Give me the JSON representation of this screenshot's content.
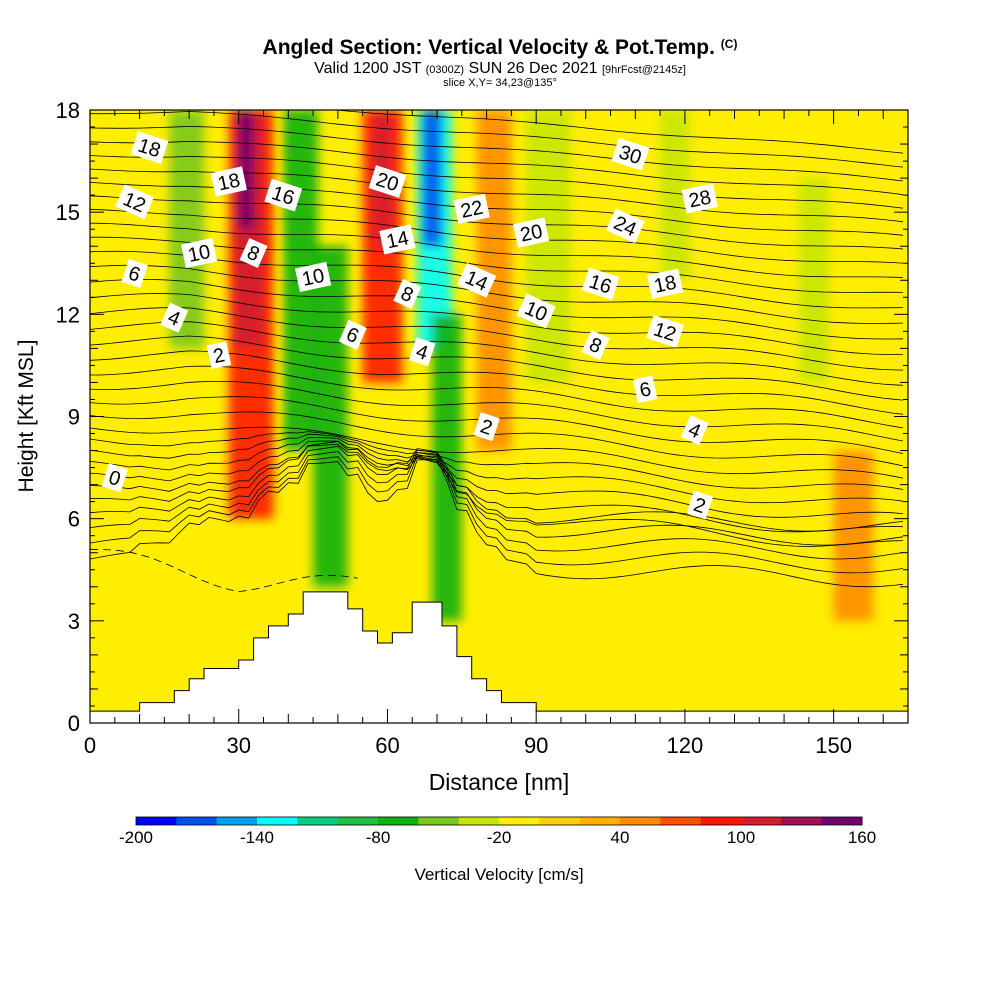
{
  "header": {
    "title": "Angled Section: Vertical Velocity & Pot.Temp.",
    "title_mark": "(C)",
    "subtitle_valid": "Valid 1200 JST",
    "subtitle_utc": "(0300Z)",
    "subtitle_date": "SUN 26 Dec 2021",
    "subtitle_fcst": "[9hrFcst@2145z]",
    "slice": "slice X,Y= 34,23@135°"
  },
  "chart_data": {
    "type": "heatmap",
    "xlabel": "Distance [nm]",
    "ylabel": "Height [Kft MSL]",
    "xlim": [
      0,
      165
    ],
    "ylim": [
      0,
      18
    ],
    "x_ticks": [
      0,
      30,
      60,
      90,
      120,
      150
    ],
    "y_ticks": [
      0,
      3,
      6,
      9,
      12,
      15,
      18
    ],
    "colorbar": {
      "label": "Vertical Velocity [cm/s]",
      "min": -200,
      "max": 160,
      "step": 20,
      "tick_labels": [
        "-200",
        "-140",
        "-80",
        "-20",
        "40",
        "100",
        "160"
      ],
      "colors": [
        "#0000ff",
        "#0050f0",
        "#00a0f0",
        "#00ffff",
        "#00d080",
        "#20c040",
        "#10b010",
        "#7ac81e",
        "#c8e600",
        "#ffee00",
        "#ffd000",
        "#ffb000",
        "#ff8c00",
        "#ff5000",
        "#ff1400",
        "#d21e2d",
        "#a01050",
        "#700070"
      ]
    },
    "terrain": [
      [
        0,
        0.35
      ],
      [
        10,
        0.35
      ],
      [
        10,
        0.6
      ],
      [
        17,
        0.6
      ],
      [
        17,
        0.95
      ],
      [
        20,
        0.95
      ],
      [
        20,
        1.3
      ],
      [
        23,
        1.3
      ],
      [
        23,
        1.6
      ],
      [
        30,
        1.6
      ],
      [
        30,
        1.85
      ],
      [
        33,
        1.85
      ],
      [
        33,
        2.5
      ],
      [
        36,
        2.5
      ],
      [
        36,
        2.85
      ],
      [
        40,
        2.85
      ],
      [
        40,
        3.2
      ],
      [
        43,
        3.2
      ],
      [
        43,
        3.85
      ],
      [
        52,
        3.85
      ],
      [
        52,
        3.35
      ],
      [
        55,
        3.35
      ],
      [
        55,
        2.7
      ],
      [
        58,
        2.7
      ],
      [
        58,
        2.35
      ],
      [
        61,
        2.35
      ],
      [
        61,
        2.65
      ],
      [
        65,
        2.65
      ],
      [
        65,
        3.55
      ],
      [
        71,
        3.55
      ],
      [
        71,
        2.85
      ],
      [
        74,
        2.85
      ],
      [
        74,
        1.95
      ],
      [
        77,
        1.95
      ],
      [
        77,
        1.3
      ],
      [
        80,
        1.3
      ],
      [
        80,
        0.95
      ],
      [
        83,
        0.95
      ],
      [
        83,
        0.6
      ],
      [
        90,
        0.6
      ],
      [
        90,
        0.35
      ],
      [
        165,
        0.35
      ]
    ],
    "velocity_bands": [
      {
        "x0": 28,
        "x1": 37,
        "y0": 6,
        "y1": 18,
        "value": 90
      },
      {
        "x0": 29,
        "x1": 35,
        "y0": 11,
        "y1": 18,
        "value": 110
      },
      {
        "x0": 30,
        "x1": 33,
        "y0": 14.5,
        "y1": 18,
        "value": 150
      },
      {
        "x0": 16,
        "x1": 23,
        "y0": 11,
        "y1": 18,
        "value": -60
      },
      {
        "x0": 39,
        "x1": 46,
        "y0": 8,
        "y1": 18,
        "value": -70
      },
      {
        "x0": 45,
        "x1": 52,
        "y0": 4,
        "y1": 14,
        "value": -80
      },
      {
        "x0": 55,
        "x1": 63,
        "y0": 10,
        "y1": 18,
        "value": 90
      },
      {
        "x0": 57,
        "x1": 61,
        "y0": 14,
        "y1": 18,
        "value": 110
      },
      {
        "x0": 66,
        "x1": 73,
        "y0": 11,
        "y1": 18,
        "value": -130
      },
      {
        "x0": 67,
        "x1": 71,
        "y0": 14,
        "y1": 18,
        "value": -170
      },
      {
        "x0": 69,
        "x1": 75,
        "y0": 3,
        "y1": 12,
        "value": -80
      },
      {
        "x0": 78,
        "x1": 85,
        "y0": 8,
        "y1": 18,
        "value": 50
      },
      {
        "x0": 88,
        "x1": 97,
        "y0": 10,
        "y1": 18,
        "value": -40
      },
      {
        "x0": 115,
        "x1": 121,
        "y0": 13,
        "y1": 18,
        "value": -30
      },
      {
        "x0": 143,
        "x1": 149,
        "y0": 10,
        "y1": 16,
        "value": -30
      },
      {
        "x0": 150,
        "x1": 158,
        "y0": 3,
        "y1": 8,
        "value": 40
      }
    ],
    "isentrope_labels": [
      {
        "text": "0",
        "x": 5,
        "y": 7.2
      },
      {
        "text": "2",
        "x": 26,
        "y": 10.8
      },
      {
        "text": "4",
        "x": 17,
        "y": 11.9
      },
      {
        "text": "6",
        "x": 9,
        "y": 13.2
      },
      {
        "text": "10",
        "x": 22,
        "y": 13.8
      },
      {
        "text": "12",
        "x": 9,
        "y": 15.3
      },
      {
        "text": "18",
        "x": 12,
        "y": 16.9
      },
      {
        "text": "18",
        "x": 28,
        "y": 15.9
      },
      {
        "text": "8",
        "x": 33,
        "y": 13.8
      },
      {
        "text": "16",
        "x": 39,
        "y": 15.5
      },
      {
        "text": "10",
        "x": 45,
        "y": 13.1
      },
      {
        "text": "6",
        "x": 53,
        "y": 11.4
      },
      {
        "text": "20",
        "x": 60,
        "y": 15.9
      },
      {
        "text": "14",
        "x": 62,
        "y": 14.2
      },
      {
        "text": "8",
        "x": 64,
        "y": 12.6
      },
      {
        "text": "4",
        "x": 67,
        "y": 10.9
      },
      {
        "text": "22",
        "x": 77,
        "y": 15.1
      },
      {
        "text": "14",
        "x": 78,
        "y": 13
      },
      {
        "text": "2",
        "x": 80,
        "y": 8.7
      },
      {
        "text": "20",
        "x": 89,
        "y": 14.4
      },
      {
        "text": "10",
        "x": 90,
        "y": 12.1
      },
      {
        "text": "30",
        "x": 109,
        "y": 16.7
      },
      {
        "text": "28",
        "x": 123,
        "y": 15.4
      },
      {
        "text": "24",
        "x": 108,
        "y": 14.6
      },
      {
        "text": "16",
        "x": 103,
        "y": 12.9
      },
      {
        "text": "18",
        "x": 116,
        "y": 12.9
      },
      {
        "text": "8",
        "x": 102,
        "y": 11.1
      },
      {
        "text": "12",
        "x": 116,
        "y": 11.5
      },
      {
        "text": "6",
        "x": 112,
        "y": 9.8
      },
      {
        "text": "4",
        "x": 122,
        "y": 8.6
      },
      {
        "text": "2",
        "x": 123,
        "y": 6.4
      }
    ]
  }
}
